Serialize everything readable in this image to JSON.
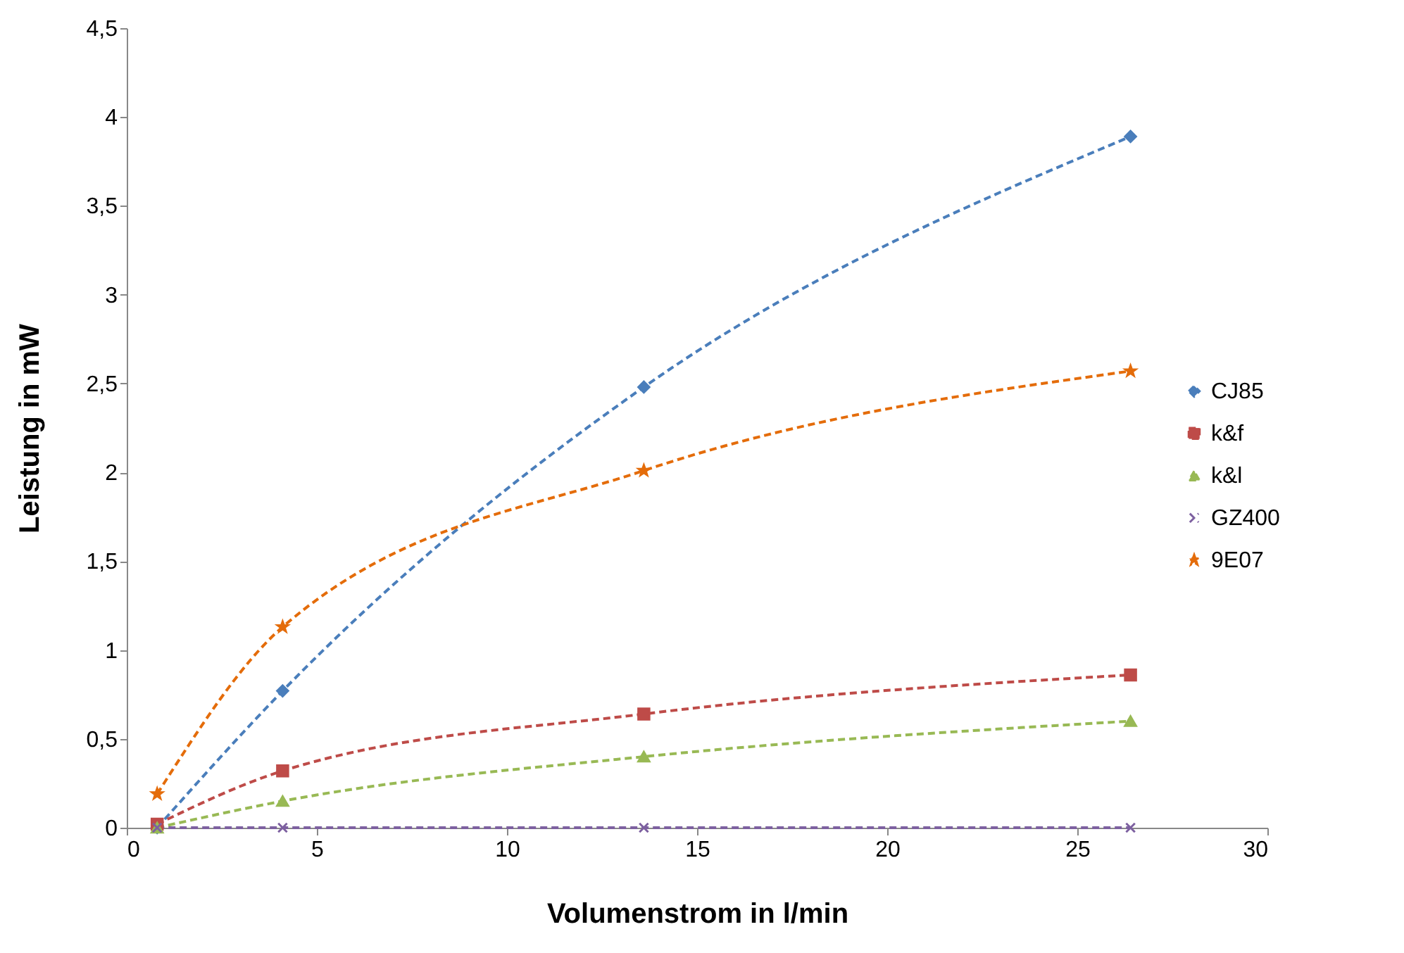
{
  "chart_data": {
    "type": "line",
    "xlabel": "Volumenstrom in  l/min",
    "ylabel": "Leistung in  mW",
    "x": [
      0.8,
      4.1,
      13.6,
      26.4
    ],
    "series": [
      {
        "name": "CJ85",
        "color": "#4a7ebb",
        "marker": "diamond",
        "values": [
          0,
          0.77,
          2.48,
          3.89
        ]
      },
      {
        "name": "k&f",
        "color": "#be4b48",
        "marker": "square",
        "values": [
          0.02,
          0.32,
          0.64,
          0.86
        ]
      },
      {
        "name": "k&l",
        "color": "#98b954",
        "marker": "triangle",
        "values": [
          0,
          0.15,
          0.4,
          0.6
        ]
      },
      {
        "name": "GZ400",
        "color": "#7d60a0",
        "marker": "cross",
        "values": [
          0,
          0,
          0,
          0
        ]
      },
      {
        "name": "9E07",
        "color": "#e46c0a",
        "marker": "star",
        "values": [
          0.19,
          1.13,
          2.01,
          2.57
        ]
      }
    ],
    "xlim": [
      0,
      30
    ],
    "xticks": [
      0,
      5,
      10,
      15,
      20,
      25,
      30
    ],
    "ylim": [
      0,
      4.5
    ],
    "yticks": [
      0,
      {
        "value": 0.5,
        "label": "0,5"
      },
      1,
      {
        "value": 1.5,
        "label": "1,5"
      },
      2,
      {
        "value": 2.5,
        "label": "2,5"
      },
      3,
      {
        "value": 3.5,
        "label": "3,5"
      },
      4,
      {
        "value": 4.5,
        "label": "4,5"
      }
    ],
    "grid": false,
    "legend": "right",
    "line_style": "dashed"
  }
}
